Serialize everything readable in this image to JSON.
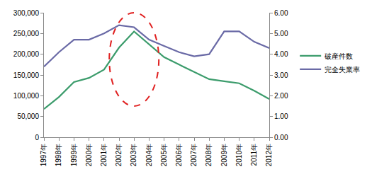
{
  "chart_data": {
    "type": "line",
    "categories": [
      "1997年",
      "1998年",
      "1999年",
      "2000年",
      "2001年",
      "2002年",
      "2003年",
      "2004年",
      "2005年",
      "2006年",
      "2007年",
      "2008年",
      "2009年",
      "2010年",
      "2011年",
      "2012年"
    ],
    "series": [
      {
        "name": "破産件数",
        "color": "#3c9c6c",
        "values": [
          68000,
          97000,
          133000,
          143000,
          163000,
          216000,
          255000,
          224000,
          193000,
          175000,
          157000,
          140000,
          135000,
          130000,
          112000,
          92000
        ]
      },
      {
        "name": "完全失業率",
        "color": "#6a6aa6",
        "axis": "y2",
        "values": [
          3.4,
          4.1,
          4.7,
          4.7,
          5.0,
          5.4,
          5.3,
          4.7,
          4.4,
          4.1,
          3.9,
          4.0,
          5.1,
          5.1,
          4.6,
          4.3
        ]
      }
    ],
    "ylim": [
      0,
      300000
    ],
    "yticks": [
      0,
      {
        "value": 50000,
        "label": "50,000"
      },
      {
        "value": 100000,
        "label": "100,000"
      },
      {
        "value": 150000,
        "label": "150,000"
      },
      {
        "value": 200000,
        "label": "200,000"
      },
      {
        "value": 250000,
        "label": "250,000"
      },
      {
        "value": 300000,
        "label": "300,000"
      }
    ],
    "y2lim": [
      0,
      6
    ],
    "y2ticks": [
      {
        "value": 0,
        "label": "0.00"
      },
      {
        "value": 1,
        "label": "1.00"
      },
      {
        "value": 2,
        "label": "2.00"
      },
      {
        "value": 3,
        "label": "3.00"
      },
      {
        "value": 4,
        "label": "4.00"
      },
      {
        "value": 5,
        "label": "5.00"
      },
      {
        "value": 6,
        "label": "6.00"
      }
    ],
    "grid": false,
    "legend": "right"
  }
}
